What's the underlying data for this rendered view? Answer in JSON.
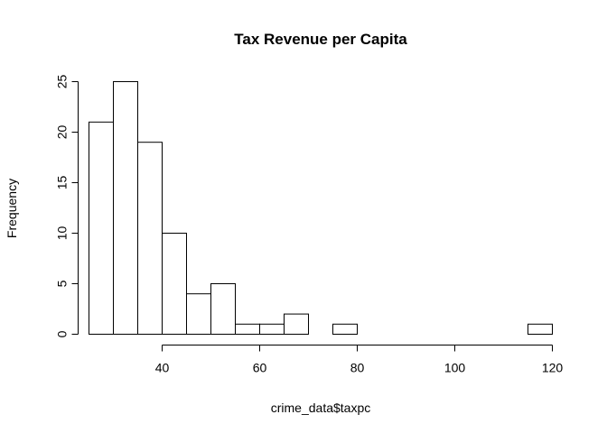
{
  "chart_data": {
    "type": "bar",
    "title": "Tax Revenue per Capita",
    "xlabel": "crime_data$taxpc",
    "ylabel": "Frequency",
    "bin_width": 5,
    "bins": [
      {
        "start": 25,
        "end": 30,
        "count": 21
      },
      {
        "start": 30,
        "end": 35,
        "count": 25
      },
      {
        "start": 35,
        "end": 40,
        "count": 19
      },
      {
        "start": 40,
        "end": 45,
        "count": 10
      },
      {
        "start": 45,
        "end": 50,
        "count": 4
      },
      {
        "start": 50,
        "end": 55,
        "count": 5
      },
      {
        "start": 55,
        "end": 60,
        "count": 1
      },
      {
        "start": 60,
        "end": 65,
        "count": 1
      },
      {
        "start": 65,
        "end": 70,
        "count": 2
      },
      {
        "start": 70,
        "end": 75,
        "count": 0
      },
      {
        "start": 75,
        "end": 80,
        "count": 1
      },
      {
        "start": 80,
        "end": 85,
        "count": 0
      },
      {
        "start": 85,
        "end": 90,
        "count": 0
      },
      {
        "start": 90,
        "end": 95,
        "count": 0
      },
      {
        "start": 95,
        "end": 100,
        "count": 0
      },
      {
        "start": 100,
        "end": 105,
        "count": 0
      },
      {
        "start": 105,
        "end": 110,
        "count": 0
      },
      {
        "start": 110,
        "end": 115,
        "count": 0
      },
      {
        "start": 115,
        "end": 120,
        "count": 1
      }
    ],
    "xlim": [
      25,
      120
    ],
    "ylim": [
      0,
      25
    ],
    "x_ticks": [
      40,
      60,
      80,
      100,
      120
    ],
    "y_ticks": [
      0,
      5,
      10,
      15,
      20,
      25
    ],
    "grid": false,
    "bar_fill": "#ffffff",
    "bar_stroke": "#000000"
  }
}
